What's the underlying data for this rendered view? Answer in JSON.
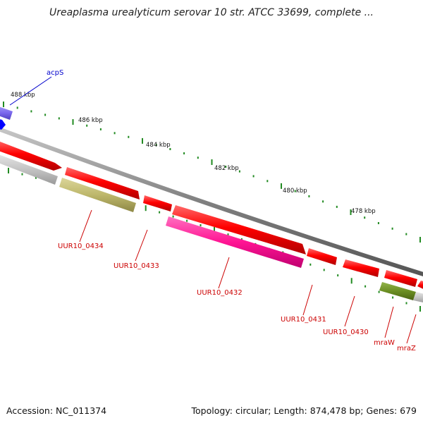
{
  "title": "Ureaplasma urealyticum serovar 10 str. ATCC 33699, complete ...",
  "footer": {
    "accession": "Accession: NC_011374",
    "stats": "Topology: circular; Length: 874,478 bp; Genes: 679"
  },
  "scale_labels": [
    "488 kbp",
    "486 kbp",
    "484 kbp",
    "482 kbp",
    "480 kbp",
    "478 kbp"
  ],
  "genes": [
    {
      "name": "acpS",
      "color": "#0000cc"
    },
    {
      "name": "UUR10_0434",
      "color": "#cc0000"
    },
    {
      "name": "UUR10_0433",
      "color": "#cc0000"
    },
    {
      "name": "UUR10_0432",
      "color": "#cc0000"
    },
    {
      "name": "UUR10_0431",
      "color": "#cc0000"
    },
    {
      "name": "UUR10_0430",
      "color": "#cc0000"
    },
    {
      "name": "mraW",
      "color": "#cc0000"
    },
    {
      "name": "mraZ",
      "color": "#cc0000"
    }
  ],
  "colors": {
    "cds_red": "#ff0000",
    "trna_blue": "#0000ff",
    "gene_purple": "#7b68ee",
    "gene_gray": "#c0c0c0",
    "gene_olive": "#bdb76b",
    "gene_pink": "#ff1493",
    "gene_green": "#6b8e23",
    "backbone": "#808080",
    "tick_green": "#228b22"
  }
}
